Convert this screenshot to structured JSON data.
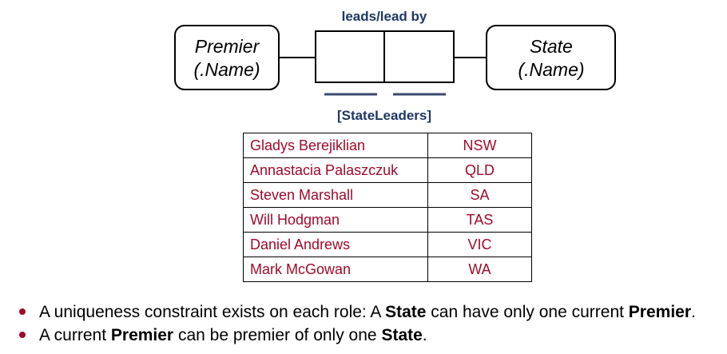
{
  "fact_type": {
    "reading": "leads/lead by",
    "name": "[StateLeaders]"
  },
  "entities": {
    "premier": {
      "line1": "Premier",
      "line2": "(.Name)"
    },
    "state": {
      "line1": "State",
      "line2": "(.Name)"
    }
  },
  "table": {
    "rows": [
      {
        "premier": "Gladys Berejiklian",
        "state": "NSW"
      },
      {
        "premier": "Annastacia Palaszczuk",
        "state": "QLD"
      },
      {
        "premier": "Steven Marshall",
        "state": "SA"
      },
      {
        "premier": "Will Hodgman",
        "state": "TAS"
      },
      {
        "premier": "Daniel Andrews",
        "state": "VIC"
      },
      {
        "premier": "Mark McGowan",
        "state": "WA"
      }
    ]
  },
  "bullets": [
    {
      "p1": "A uniqueness constraint exists on each role: A ",
      "b1": "State",
      "p2": " can have only one current ",
      "b2": "Premier",
      "p3": "."
    },
    {
      "p1": "A current ",
      "b1": "Premier",
      "p2": " can be premier of only one ",
      "b2": "State",
      "p3": "."
    }
  ],
  "colors": {
    "table_text": "#a00a2a",
    "bullet_dot": "#a00a2a",
    "fact_label": "#1f3864",
    "uniqueness_bar": "#3a4a6b"
  }
}
